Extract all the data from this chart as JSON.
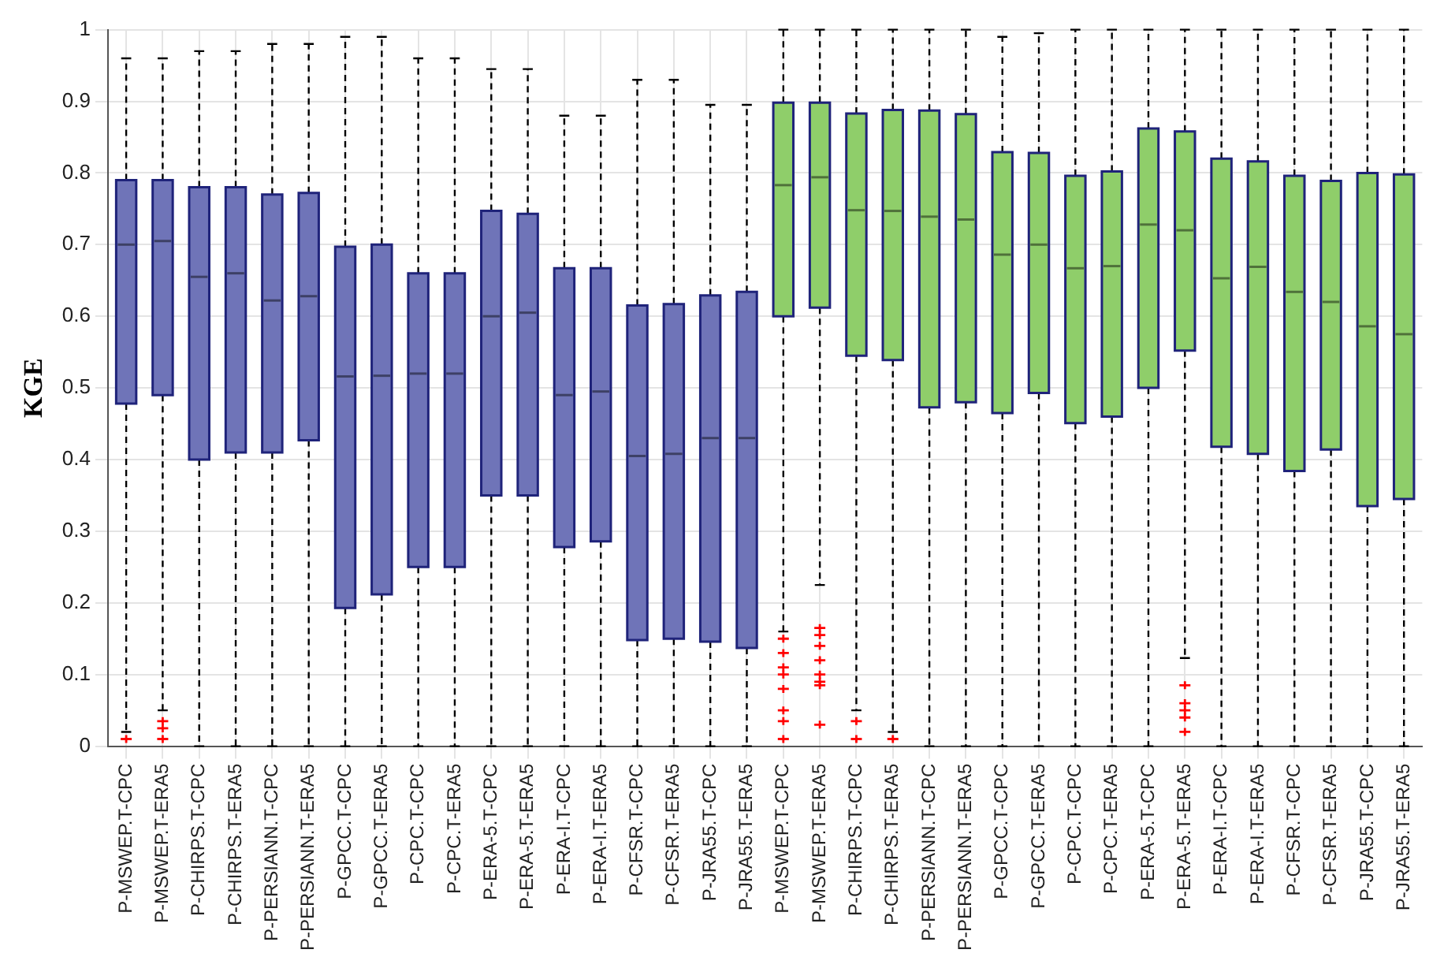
{
  "chart_data": {
    "type": "box",
    "ylabel": "KGE",
    "categories": [
      "P-MSWEP.T-CPC",
      "P-MSWEP.T-ERA5",
      "P-CHIRPS.T-CPC",
      "P-CHIRPS.T-ERA5",
      "P-PERSIANN.T-CPC",
      "P-PERSIANN.T-ERA5",
      "P-GPCC.T-CPC",
      "P-GPCC.T-ERA5",
      "P-CPC.T-CPC",
      "P-CPC.T-ERA5",
      "P-ERA-5.T-CPC",
      "P-ERA-5.T-ERA5",
      "P-ERA-I.T-CPC",
      "P-ERA-I.T-ERA5",
      "P-CFSR.T-CPC",
      "P-CFSR.T-ERA5",
      "P-JRA55.T-CPC",
      "P-JRA55.T-ERA5",
      "P-MSWEP.T-CPC",
      "P-MSWEP.T-ERA5",
      "P-CHIRPS.T-CPC",
      "P-CHIRPS.T-ERA5",
      "P-PERSIANN.T-CPC",
      "P-PERSIANN.T-ERA5",
      "P-GPCC.T-CPC",
      "P-GPCC.T-ERA5",
      "P-CPC.T-CPC",
      "P-CPC.T-ERA5",
      "P-ERA-5.T-CPC",
      "P-ERA-5.T-ERA5",
      "P-ERA-I.T-CPC",
      "P-ERA-I.T-ERA5",
      "P-CFSR.T-CPC",
      "P-CFSR.T-ERA5",
      "P-JRA55.T-CPC",
      "P-JRA55.T-ERA5"
    ],
    "boxes": [
      {
        "low": 0.02,
        "q1": 0.478,
        "median": 0.7,
        "q3": 0.79,
        "high": 0.96,
        "outliers": [
          0.01
        ]
      },
      {
        "low": 0.05,
        "q1": 0.49,
        "median": 0.705,
        "q3": 0.79,
        "high": 0.96,
        "outliers": [
          0.035,
          0.025,
          0.01
        ]
      },
      {
        "low": 0,
        "q1": 0.4,
        "median": 0.655,
        "q3": 0.78,
        "high": 0.97
      },
      {
        "low": 0,
        "q1": 0.41,
        "median": 0.66,
        "q3": 0.78,
        "high": 0.97
      },
      {
        "low": 0,
        "q1": 0.41,
        "median": 0.622,
        "q3": 0.77,
        "high": 0.98
      },
      {
        "low": 0,
        "q1": 0.427,
        "median": 0.628,
        "q3": 0.772,
        "high": 0.98
      },
      {
        "low": 0,
        "q1": 0.193,
        "median": 0.516,
        "q3": 0.697,
        "high": 0.99
      },
      {
        "low": 0,
        "q1": 0.212,
        "median": 0.517,
        "q3": 0.7,
        "high": 0.99
      },
      {
        "low": 0,
        "q1": 0.25,
        "median": 0.52,
        "q3": 0.66,
        "high": 0.96
      },
      {
        "low": 0,
        "q1": 0.25,
        "median": 0.52,
        "q3": 0.66,
        "high": 0.96
      },
      {
        "low": 0,
        "q1": 0.35,
        "median": 0.6,
        "q3": 0.747,
        "high": 0.945
      },
      {
        "low": 0,
        "q1": 0.35,
        "median": 0.605,
        "q3": 0.743,
        "high": 0.945
      },
      {
        "low": 0,
        "q1": 0.278,
        "median": 0.49,
        "q3": 0.667,
        "high": 0.88
      },
      {
        "low": 0,
        "q1": 0.286,
        "median": 0.495,
        "q3": 0.667,
        "high": 0.88
      },
      {
        "low": 0,
        "q1": 0.148,
        "median": 0.405,
        "q3": 0.615,
        "high": 0.93
      },
      {
        "low": 0,
        "q1": 0.15,
        "median": 0.408,
        "q3": 0.617,
        "high": 0.93
      },
      {
        "low": 0,
        "q1": 0.146,
        "median": 0.43,
        "q3": 0.629,
        "high": 0.895
      },
      {
        "low": 0,
        "q1": 0.137,
        "median": 0.43,
        "q3": 0.634,
        "high": 0.895
      },
      {
        "low": 0.16,
        "q1": 0.6,
        "median": 0.783,
        "q3": 0.898,
        "high": 1,
        "outliers": [
          0.15,
          0.13,
          0.11,
          0.1,
          0.08,
          0.05,
          0.035,
          0.01
        ]
      },
      {
        "low": 0.225,
        "q1": 0.612,
        "median": 0.794,
        "q3": 0.898,
        "high": 1,
        "outliers": [
          0.165,
          0.155,
          0.14,
          0.12,
          0.1,
          0.09,
          0.085,
          0.03
        ]
      },
      {
        "low": 0.05,
        "q1": 0.545,
        "median": 0.748,
        "q3": 0.883,
        "high": 1,
        "outliers": [
          0.035,
          0.01
        ]
      },
      {
        "low": 0.02,
        "q1": 0.539,
        "median": 0.747,
        "q3": 0.888,
        "high": 1,
        "outliers": [
          0.01
        ]
      },
      {
        "low": 0,
        "q1": 0.473,
        "median": 0.739,
        "q3": 0.887,
        "high": 1
      },
      {
        "low": 0,
        "q1": 0.48,
        "median": 0.735,
        "q3": 0.882,
        "high": 1
      },
      {
        "low": 0,
        "q1": 0.465,
        "median": 0.686,
        "q3": 0.829,
        "high": 0.99
      },
      {
        "low": 0,
        "q1": 0.493,
        "median": 0.7,
        "q3": 0.828,
        "high": 0.995
      },
      {
        "low": 0,
        "q1": 0.451,
        "median": 0.667,
        "q3": 0.796,
        "high": 1
      },
      {
        "low": 0,
        "q1": 0.46,
        "median": 0.67,
        "q3": 0.802,
        "high": 1
      },
      {
        "low": 0,
        "q1": 0.5,
        "median": 0.728,
        "q3": 0.862,
        "high": 1
      },
      {
        "low": 0.123,
        "q1": 0.552,
        "median": 0.72,
        "q3": 0.858,
        "high": 1,
        "outliers": [
          0.085,
          0.06,
          0.05,
          0.04,
          0.02
        ]
      },
      {
        "low": 0,
        "q1": 0.418,
        "median": 0.653,
        "q3": 0.82,
        "high": 1
      },
      {
        "low": 0,
        "q1": 0.408,
        "median": 0.669,
        "q3": 0.816,
        "high": 1
      },
      {
        "low": 0,
        "q1": 0.384,
        "median": 0.634,
        "q3": 0.796,
        "high": 1
      },
      {
        "low": 0,
        "q1": 0.414,
        "median": 0.62,
        "q3": 0.789,
        "high": 1
      },
      {
        "low": 0,
        "q1": 0.335,
        "median": 0.586,
        "q3": 0.8,
        "high": 1
      },
      {
        "low": 0,
        "q1": 0.345,
        "median": 0.575,
        "q3": 0.798,
        "high": 1
      }
    ],
    "colors": [
      "#6f74b8",
      "#6f74b8",
      "#6f74b8",
      "#6f74b8",
      "#6f74b8",
      "#6f74b8",
      "#6f74b8",
      "#6f74b8",
      "#6f74b8",
      "#6f74b8",
      "#6f74b8",
      "#6f74b8",
      "#6f74b8",
      "#6f74b8",
      "#6f74b8",
      "#6f74b8",
      "#6f74b8",
      "#6f74b8",
      "#8fce6a",
      "#8fce6a",
      "#8fce6a",
      "#8fce6a",
      "#8fce6a",
      "#8fce6a",
      "#8fce6a",
      "#8fce6a",
      "#8fce6a",
      "#8fce6a",
      "#8fce6a",
      "#8fce6a",
      "#8fce6a",
      "#8fce6a",
      "#8fce6a",
      "#8fce6a",
      "#8fce6a",
      "#8fce6a"
    ],
    "ylim": [
      0,
      1
    ],
    "yticks": [
      0,
      0.1,
      0.2,
      0.3,
      0.4,
      0.5,
      0.6,
      0.7,
      0.8,
      0.9,
      1
    ],
    "grid": true
  }
}
